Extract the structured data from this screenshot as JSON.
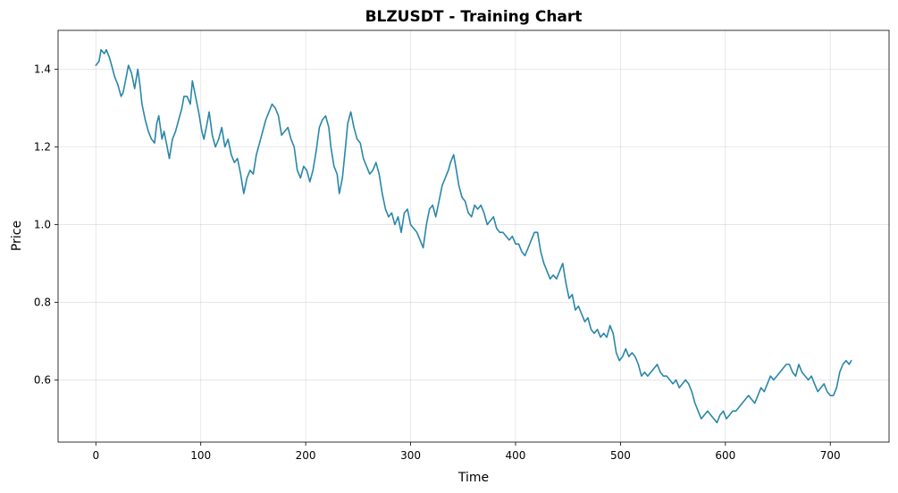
{
  "chart_data": {
    "type": "line",
    "title": "BLZUSDT - Training Chart",
    "xlabel": "Time",
    "ylabel": "Price",
    "xlim": [
      -36,
      756
    ],
    "ylim": [
      0.44,
      1.5
    ],
    "xticks": [
      0,
      100,
      200,
      300,
      400,
      500,
      600,
      700
    ],
    "yticks": [
      0.6,
      0.8,
      1.0,
      1.2,
      1.4
    ],
    "ytick_labels": [
      "0.6",
      "0.8",
      "1.0",
      "1.2",
      "1.4"
    ],
    "grid": true,
    "line_color": "#2a87a8",
    "series": [
      {
        "points": [
          [
            0,
            1.41
          ],
          [
            3,
            1.42
          ],
          [
            5,
            1.45
          ],
          [
            8,
            1.44
          ],
          [
            10,
            1.45
          ],
          [
            13,
            1.43
          ],
          [
            16,
            1.4
          ],
          [
            18,
            1.38
          ],
          [
            21,
            1.36
          ],
          [
            24,
            1.33
          ],
          [
            26,
            1.34
          ],
          [
            29,
            1.38
          ],
          [
            31,
            1.41
          ],
          [
            34,
            1.39
          ],
          [
            37,
            1.35
          ],
          [
            40,
            1.4
          ],
          [
            42,
            1.36
          ],
          [
            44,
            1.31
          ],
          [
            47,
            1.27
          ],
          [
            50,
            1.24
          ],
          [
            53,
            1.22
          ],
          [
            56,
            1.21
          ],
          [
            58,
            1.26
          ],
          [
            60,
            1.28
          ],
          [
            63,
            1.22
          ],
          [
            65,
            1.24
          ],
          [
            68,
            1.2
          ],
          [
            70,
            1.17
          ],
          [
            73,
            1.22
          ],
          [
            76,
            1.24
          ],
          [
            79,
            1.27
          ],
          [
            82,
            1.3
          ],
          [
            84,
            1.33
          ],
          [
            87,
            1.33
          ],
          [
            90,
            1.31
          ],
          [
            92,
            1.37
          ],
          [
            95,
            1.33
          ],
          [
            98,
            1.29
          ],
          [
            101,
            1.24
          ],
          [
            103,
            1.22
          ],
          [
            106,
            1.26
          ],
          [
            108,
            1.29
          ],
          [
            111,
            1.23
          ],
          [
            114,
            1.2
          ],
          [
            117,
            1.22
          ],
          [
            120,
            1.25
          ],
          [
            123,
            1.2
          ],
          [
            126,
            1.22
          ],
          [
            129,
            1.18
          ],
          [
            132,
            1.16
          ],
          [
            135,
            1.17
          ],
          [
            138,
            1.13
          ],
          [
            141,
            1.08
          ],
          [
            144,
            1.12
          ],
          [
            147,
            1.14
          ],
          [
            150,
            1.13
          ],
          [
            153,
            1.18
          ],
          [
            156,
            1.21
          ],
          [
            159,
            1.24
          ],
          [
            162,
            1.27
          ],
          [
            165,
            1.29
          ],
          [
            168,
            1.31
          ],
          [
            171,
            1.3
          ],
          [
            174,
            1.28
          ],
          [
            177,
            1.23
          ],
          [
            180,
            1.24
          ],
          [
            183,
            1.25
          ],
          [
            186,
            1.22
          ],
          [
            189,
            1.2
          ],
          [
            192,
            1.14
          ],
          [
            195,
            1.12
          ],
          [
            198,
            1.15
          ],
          [
            201,
            1.14
          ],
          [
            204,
            1.11
          ],
          [
            207,
            1.14
          ],
          [
            210,
            1.19
          ],
          [
            213,
            1.25
          ],
          [
            216,
            1.27
          ],
          [
            219,
            1.28
          ],
          [
            222,
            1.25
          ],
          [
            224,
            1.2
          ],
          [
            227,
            1.15
          ],
          [
            230,
            1.13
          ],
          [
            232,
            1.08
          ],
          [
            235,
            1.12
          ],
          [
            238,
            1.2
          ],
          [
            240,
            1.26
          ],
          [
            243,
            1.29
          ],
          [
            246,
            1.25
          ],
          [
            249,
            1.22
          ],
          [
            252,
            1.21
          ],
          [
            255,
            1.17
          ],
          [
            258,
            1.15
          ],
          [
            261,
            1.13
          ],
          [
            264,
            1.14
          ],
          [
            267,
            1.16
          ],
          [
            270,
            1.13
          ],
          [
            273,
            1.08
          ],
          [
            276,
            1.04
          ],
          [
            279,
            1.02
          ],
          [
            282,
            1.03
          ],
          [
            285,
            1.0
          ],
          [
            288,
            1.02
          ],
          [
            291,
            0.98
          ],
          [
            294,
            1.03
          ],
          [
            297,
            1.04
          ],
          [
            300,
            1.0
          ],
          [
            303,
            0.99
          ],
          [
            306,
            0.98
          ],
          [
            309,
            0.96
          ],
          [
            312,
            0.94
          ],
          [
            315,
            1.0
          ],
          [
            318,
            1.04
          ],
          [
            321,
            1.05
          ],
          [
            324,
            1.02
          ],
          [
            327,
            1.06
          ],
          [
            330,
            1.1
          ],
          [
            333,
            1.12
          ],
          [
            336,
            1.14
          ],
          [
            338,
            1.16
          ],
          [
            341,
            1.18
          ],
          [
            343,
            1.15
          ],
          [
            346,
            1.1
          ],
          [
            349,
            1.07
          ],
          [
            352,
            1.06
          ],
          [
            355,
            1.03
          ],
          [
            358,
            1.02
          ],
          [
            361,
            1.05
          ],
          [
            364,
            1.04
          ],
          [
            367,
            1.05
          ],
          [
            370,
            1.03
          ],
          [
            373,
            1.0
          ],
          [
            376,
            1.01
          ],
          [
            379,
            1.02
          ],
          [
            382,
            0.99
          ],
          [
            385,
            0.98
          ],
          [
            388,
            0.98
          ],
          [
            391,
            0.97
          ],
          [
            394,
            0.96
          ],
          [
            397,
            0.97
          ],
          [
            400,
            0.95
          ],
          [
            403,
            0.95
          ],
          [
            406,
            0.93
          ],
          [
            409,
            0.92
          ],
          [
            412,
            0.94
          ],
          [
            415,
            0.96
          ],
          [
            418,
            0.98
          ],
          [
            421,
            0.98
          ],
          [
            424,
            0.93
          ],
          [
            427,
            0.9
          ],
          [
            430,
            0.88
          ],
          [
            433,
            0.86
          ],
          [
            436,
            0.87
          ],
          [
            439,
            0.86
          ],
          [
            442,
            0.88
          ],
          [
            445,
            0.9
          ],
          [
            448,
            0.85
          ],
          [
            451,
            0.81
          ],
          [
            454,
            0.82
          ],
          [
            457,
            0.78
          ],
          [
            460,
            0.79
          ],
          [
            463,
            0.77
          ],
          [
            466,
            0.75
          ],
          [
            469,
            0.76
          ],
          [
            472,
            0.73
          ],
          [
            475,
            0.72
          ],
          [
            478,
            0.73
          ],
          [
            481,
            0.71
          ],
          [
            484,
            0.72
          ],
          [
            487,
            0.71
          ],
          [
            490,
            0.74
          ],
          [
            493,
            0.72
          ],
          [
            496,
            0.67
          ],
          [
            499,
            0.65
          ],
          [
            502,
            0.66
          ],
          [
            505,
            0.68
          ],
          [
            508,
            0.66
          ],
          [
            511,
            0.67
          ],
          [
            514,
            0.66
          ],
          [
            517,
            0.64
          ],
          [
            520,
            0.61
          ],
          [
            523,
            0.62
          ],
          [
            526,
            0.61
          ],
          [
            529,
            0.62
          ],
          [
            532,
            0.63
          ],
          [
            535,
            0.64
          ],
          [
            538,
            0.62
          ],
          [
            541,
            0.61
          ],
          [
            544,
            0.61
          ],
          [
            547,
            0.6
          ],
          [
            550,
            0.59
          ],
          [
            553,
            0.6
          ],
          [
            556,
            0.58
          ],
          [
            559,
            0.59
          ],
          [
            562,
            0.6
          ],
          [
            565,
            0.59
          ],
          [
            568,
            0.57
          ],
          [
            571,
            0.54
          ],
          [
            574,
            0.52
          ],
          [
            577,
            0.5
          ],
          [
            580,
            0.51
          ],
          [
            583,
            0.52
          ],
          [
            586,
            0.51
          ],
          [
            589,
            0.5
          ],
          [
            592,
            0.49
          ],
          [
            595,
            0.51
          ],
          [
            598,
            0.52
          ],
          [
            601,
            0.5
          ],
          [
            604,
            0.51
          ],
          [
            607,
            0.52
          ],
          [
            610,
            0.52
          ],
          [
            613,
            0.53
          ],
          [
            616,
            0.54
          ],
          [
            619,
            0.55
          ],
          [
            622,
            0.56
          ],
          [
            625,
            0.55
          ],
          [
            628,
            0.54
          ],
          [
            631,
            0.56
          ],
          [
            634,
            0.58
          ],
          [
            637,
            0.57
          ],
          [
            640,
            0.59
          ],
          [
            643,
            0.61
          ],
          [
            646,
            0.6
          ],
          [
            649,
            0.61
          ],
          [
            652,
            0.62
          ],
          [
            655,
            0.63
          ],
          [
            658,
            0.64
          ],
          [
            661,
            0.64
          ],
          [
            664,
            0.62
          ],
          [
            667,
            0.61
          ],
          [
            670,
            0.64
          ],
          [
            673,
            0.62
          ],
          [
            676,
            0.61
          ],
          [
            679,
            0.6
          ],
          [
            682,
            0.61
          ],
          [
            685,
            0.59
          ],
          [
            688,
            0.57
          ],
          [
            691,
            0.58
          ],
          [
            694,
            0.59
          ],
          [
            697,
            0.57
          ],
          [
            700,
            0.56
          ],
          [
            703,
            0.56
          ],
          [
            706,
            0.58
          ],
          [
            709,
            0.62
          ],
          [
            712,
            0.64
          ],
          [
            715,
            0.65
          ],
          [
            718,
            0.64
          ],
          [
            720,
            0.65
          ]
        ]
      }
    ]
  }
}
